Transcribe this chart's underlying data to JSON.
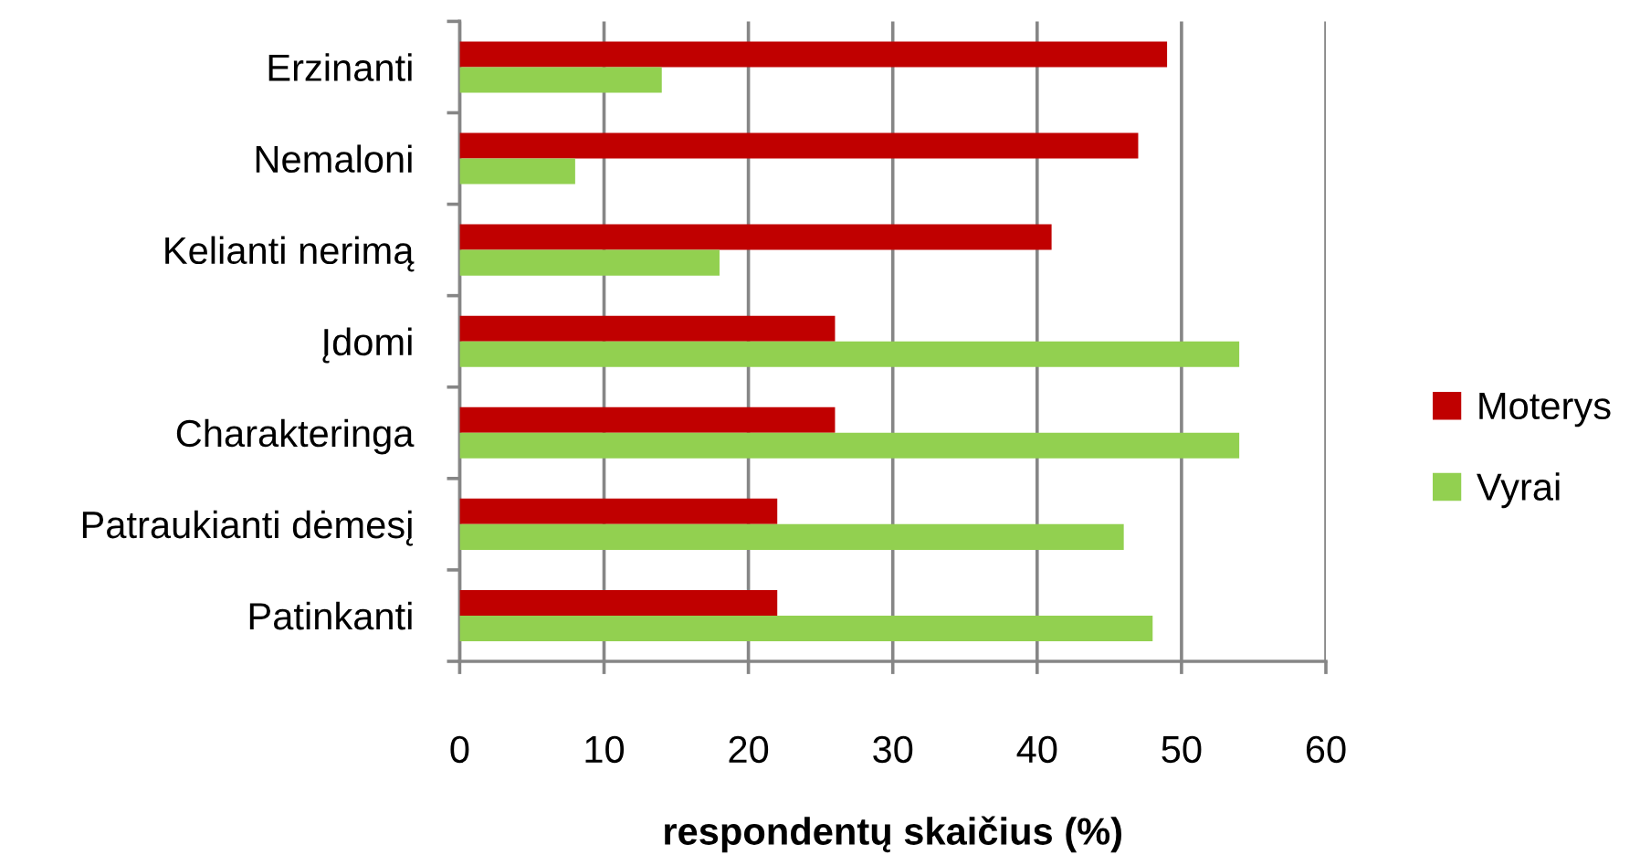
{
  "chart_data": {
    "type": "bar",
    "orientation": "horizontal",
    "categories": [
      "Erzinanti",
      "Nemaloni",
      "Kelianti nerimą",
      "Įdomi",
      "Charakteringa",
      "Patraukianti dėmesį",
      "Patinkanti"
    ],
    "series": [
      {
        "name": "Moterys",
        "color": "#c00000",
        "values": [
          49,
          47,
          41,
          26,
          26,
          22,
          22
        ]
      },
      {
        "name": "Vyrai",
        "color": "#92d050",
        "values": [
          14,
          8,
          18,
          54,
          54,
          46,
          48
        ]
      }
    ],
    "xlabel": "respondentų skaičius (%)",
    "xlim": [
      0,
      60
    ],
    "xticks": [
      0,
      10,
      20,
      30,
      40,
      50,
      60
    ],
    "grid": "x",
    "legend": "right"
  }
}
